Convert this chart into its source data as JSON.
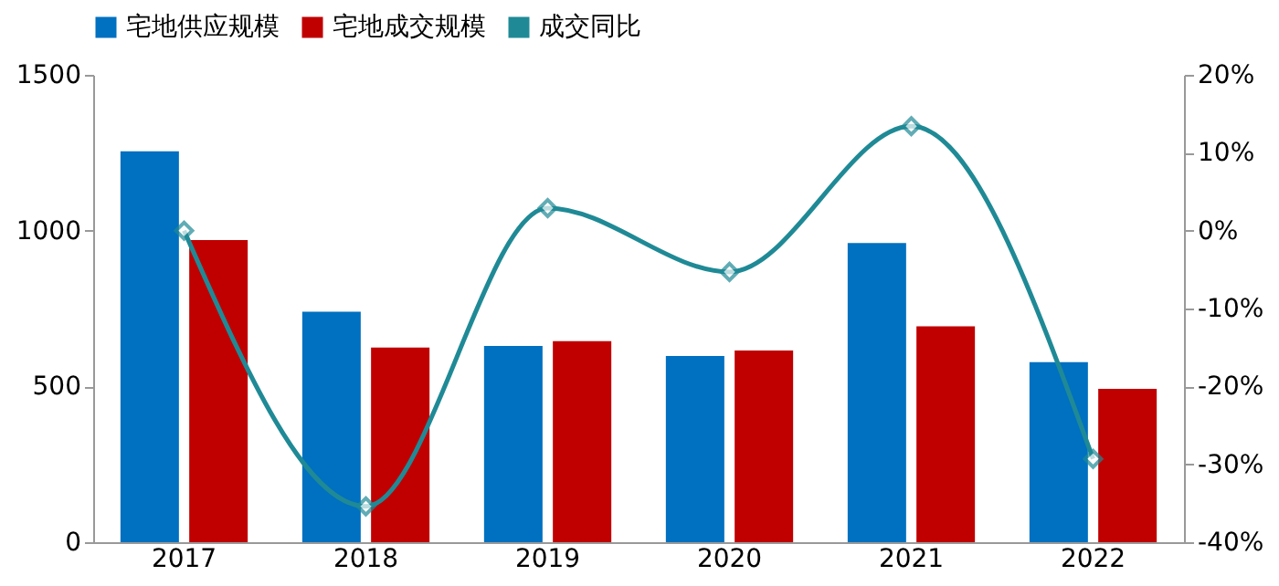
{
  "chart_data": {
    "type": "bar",
    "categories": [
      "2017",
      "2018",
      "2019",
      "2020",
      "2021",
      "2022"
    ],
    "series": [
      {
        "name": "宅地供应规模",
        "color": "#0070c0",
        "values": [
          1255,
          740,
          630,
          598,
          960,
          578
        ]
      },
      {
        "name": "宅地成交规模",
        "color": "#c00000",
        "values": [
          970,
          625,
          645,
          615,
          693,
          492
        ]
      },
      {
        "name": "成交同比",
        "type": "line",
        "axis": "y2",
        "color": "#1f8a96",
        "marker": "diamond",
        "values": [
          0,
          -35.4,
          2.9,
          -5.3,
          13.4,
          -29.3
        ]
      }
    ],
    "ylim": [
      0,
      1500
    ],
    "yticks": [
      0,
      500,
      1000,
      1500
    ],
    "y2lim": [
      -40,
      20
    ],
    "y2ticks": [
      {
        "value": -40,
        "label": "-40%"
      },
      {
        "value": -30,
        "label": "-30%"
      },
      {
        "value": -20,
        "label": "-20%"
      },
      {
        "value": -10,
        "label": "-10%"
      },
      {
        "value": 0,
        "label": "0%"
      },
      {
        "value": 10,
        "label": "10%"
      },
      {
        "value": 20,
        "label": "20%"
      }
    ],
    "grid": false,
    "legend": "top"
  }
}
